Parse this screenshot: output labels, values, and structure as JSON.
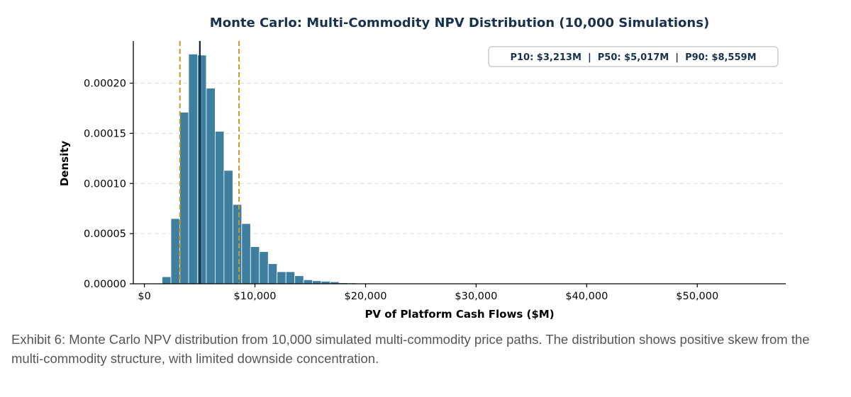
{
  "chart_data": {
    "type": "histogram",
    "title": "Monte Carlo: Multi-Commodity NPV Distribution (10,000 Simulations)",
    "xlabel": "PV of Platform Cash Flows ($M)",
    "ylabel": "Density",
    "xlim": [
      -1000,
      58000
    ],
    "ylim": [
      0,
      0.000242
    ],
    "bin_width": 800,
    "x_ticks": [
      {
        "value": 0,
        "label": "$0"
      },
      {
        "value": 10000,
        "label": "$10,000"
      },
      {
        "value": 20000,
        "label": "$20,000"
      },
      {
        "value": 30000,
        "label": "$30,000"
      },
      {
        "value": 40000,
        "label": "$40,000"
      },
      {
        "value": 50000,
        "label": "$50,000"
      }
    ],
    "y_ticks": [
      {
        "value": 0.0,
        "label": "0.00000"
      },
      {
        "value": 5e-05,
        "label": "0.00005"
      },
      {
        "value": 0.0001,
        "label": "0.00010"
      },
      {
        "value": 0.00015,
        "label": "0.00015"
      },
      {
        "value": 0.0002,
        "label": "0.00020"
      }
    ],
    "bins": [
      {
        "x0": 1600,
        "x1": 2400,
        "density": 7e-06
      },
      {
        "x0": 2400,
        "x1": 3200,
        "density": 6.5e-05
      },
      {
        "x0": 3200,
        "x1": 4000,
        "density": 0.000171
      },
      {
        "x0": 4000,
        "x1": 4800,
        "density": 0.000229
      },
      {
        "x0": 4800,
        "x1": 5600,
        "density": 0.000228
      },
      {
        "x0": 5600,
        "x1": 6400,
        "density": 0.000195
      },
      {
        "x0": 6400,
        "x1": 7200,
        "density": 0.000152
      },
      {
        "x0": 7200,
        "x1": 8000,
        "density": 0.000113
      },
      {
        "x0": 8000,
        "x1": 8800,
        "density": 7.9e-05
      },
      {
        "x0": 8800,
        "x1": 9600,
        "density": 6e-05
      },
      {
        "x0": 9600,
        "x1": 10400,
        "density": 3.7e-05
      },
      {
        "x0": 10400,
        "x1": 11200,
        "density": 3.2e-05
      },
      {
        "x0": 11200,
        "x1": 12000,
        "density": 2e-05
      },
      {
        "x0": 12000,
        "x1": 12800,
        "density": 1.2e-05
      },
      {
        "x0": 12800,
        "x1": 13600,
        "density": 1.2e-05
      },
      {
        "x0": 13600,
        "x1": 14400,
        "density": 8e-06
      },
      {
        "x0": 14400,
        "x1": 15200,
        "density": 4e-06
      },
      {
        "x0": 15200,
        "x1": 16000,
        "density": 3e-06
      },
      {
        "x0": 16000,
        "x1": 16800,
        "density": 2.5e-06
      },
      {
        "x0": 16800,
        "x1": 17600,
        "density": 2e-06
      },
      {
        "x0": 17600,
        "x1": 18400,
        "density": 1e-06
      },
      {
        "x0": 18400,
        "x1": 19200,
        "density": 8e-07
      },
      {
        "x0": 19200,
        "x1": 20000,
        "density": 5e-07
      },
      {
        "x0": 20000,
        "x1": 20800,
        "density": 4e-07
      },
      {
        "x0": 20800,
        "x1": 21600,
        "density": 3e-07
      },
      {
        "x0": 21600,
        "x1": 22400,
        "density": 2e-07
      }
    ],
    "percentiles": [
      {
        "name": "P10",
        "value": 3213,
        "style": "dashed",
        "color": "#c99a22"
      },
      {
        "name": "P50",
        "value": 5017,
        "style": "solid",
        "color": "#0e2240"
      },
      {
        "name": "P90",
        "value": 8559,
        "style": "dashed",
        "color": "#c99a22"
      }
    ],
    "annotation": "P10: $3,213M  |  P50: $5,017M  |  P90: $8,559M",
    "grid": "horizontal-dashed",
    "annotation_position": "top-right"
  },
  "colors": {
    "bar_fill": "#3e7fa0",
    "bar_edge": "#ffffff",
    "title": "#17324f",
    "grid": "#dddddd",
    "axis": "#000000",
    "caption": "#555555"
  },
  "caption": "Exhibit 6: Monte Carlo NPV distribution from 10,000 simulated multi-commodity price paths. The distribution shows positive skew from the multi-commodity structure, with limited downside concentration."
}
